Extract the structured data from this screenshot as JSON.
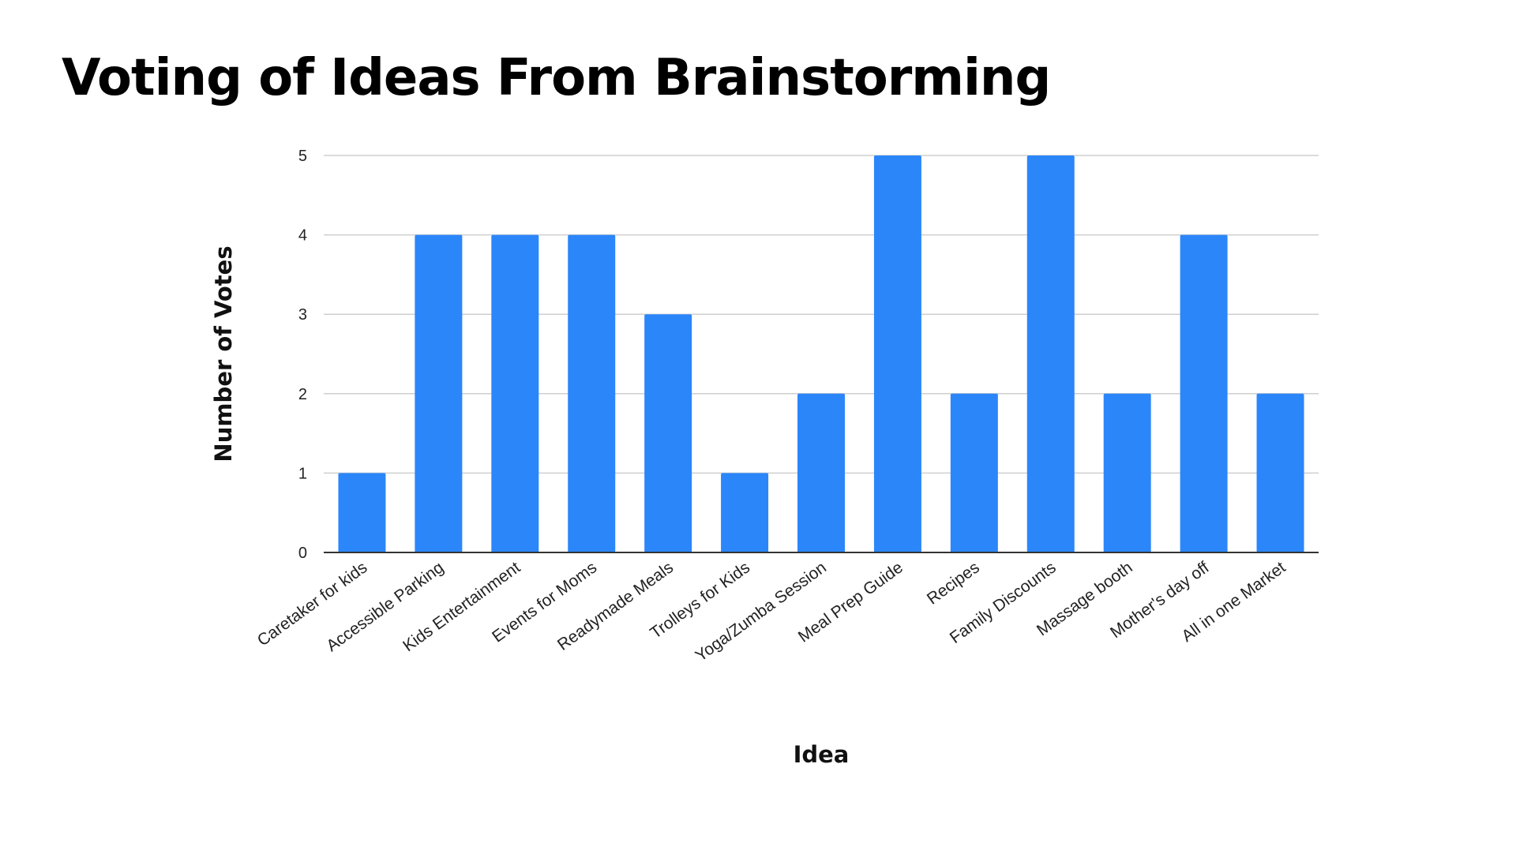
{
  "title": "Voting of Ideas From Brainstorming",
  "chart_data": {
    "type": "bar",
    "categories": [
      "Caretaker for kids",
      "Accessible Parking",
      "Kids Entertainment",
      "Events for Moms",
      "Readymade Meals",
      "Trolleys for Kids",
      "Yoga/Zumba Session",
      "Meal Prep Guide",
      "Recipes",
      "Family Discounts",
      "Massage booth",
      "Mother's day off",
      "All in one Market"
    ],
    "values": [
      1,
      4,
      4,
      4,
      3,
      1,
      2,
      5,
      2,
      5,
      2,
      4,
      2
    ],
    "xlabel": "Idea",
    "ylabel": "Number of Votes",
    "ylim": [
      0,
      5
    ],
    "yticks": [
      "0",
      "1",
      "2",
      "3",
      "4",
      "5"
    ],
    "grid": true,
    "legend": "none",
    "colors": {
      "bar": "#2b86fa",
      "grid": "#cfcfcf",
      "axis": "#333333"
    }
  }
}
